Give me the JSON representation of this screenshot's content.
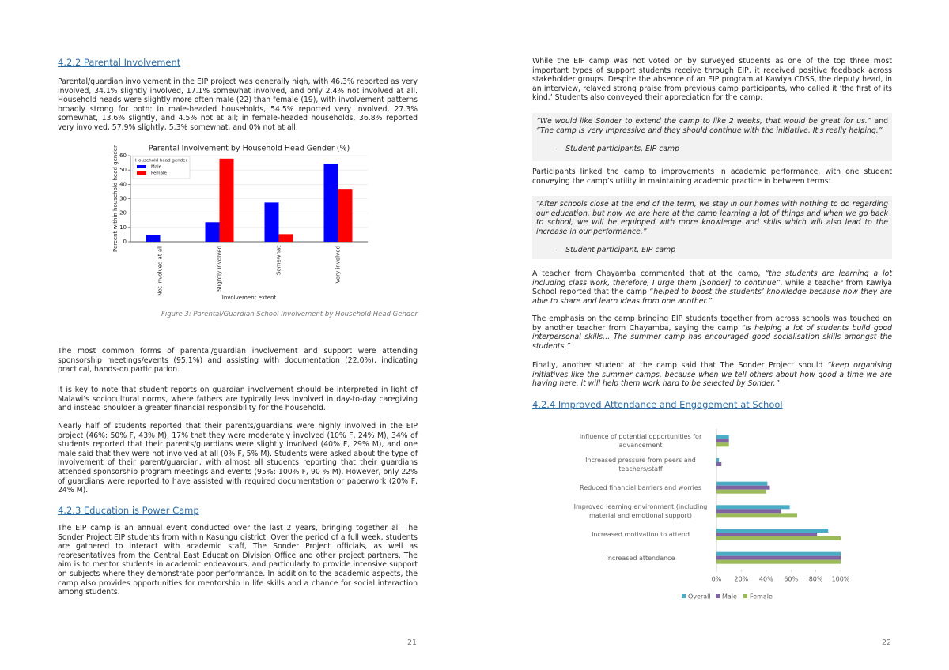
{
  "left_page": {
    "heading": "4.2.2 Parental Involvement",
    "intro": "Parental/guardian involvement in the EIP project was generally high, with 46.3% reported as very involved, 34.1% slightly involved, 17.1% somewhat involved, and only 2.4% not involved at all. Household heads were slightly more often male (22) than female (19), with involvement patterns broadly strong for both: in male-headed households, 54.5% reported very involved, 27.3% somewhat, 13.6% slightly, and 4.5% not at all; in female-headed households, 36.8% reported very involved, 57.9% slightly, 5.3% somewhat, and 0% not at all.",
    "figure_caption": "Figure 3: Parental/Guardian School Involvement by Household Head Gender",
    "paragraphs": [
      "The most common forms of parental/guardian involvement and support were attending sponsorship meetings/events (95.1%) and assisting with documentation (22.0%), indicating practical, hands-on participation.",
      "It is key to note that student reports on guardian involvement should be interpreted in light of Malawi’s sociocultural norms, where fathers are typically less involved in day-to-day caregiving and instead shoulder a greater financial responsibility for the household.",
      "Nearly half of students reported that their parents/guardians were highly involved in the EIP project (46%: 50% F, 43% M), 17% that they were moderately involved (10% F, 24% M), 34% of students reported that their parents/guardians were slightly involved (40% F, 29% M), and one male said that they were not involved at all (0% F, 5% M). Students were asked about the type of involvement of their parent/guardian, with almost all students reporting that their guardians attended sponsorship program meetings and events (95%: 100% F, 90 % M). However, only 22% of guardians were reported to have assisted with required documentation or paperwork (20% F, 24% M)."
    ],
    "heading_2": "4.2.3 Education is Power Camp",
    "camp_paragraph": "The EIP camp is an annual event conducted over the last 2 years, bringing together all The Sonder Project EIP students from within Kasungu district. Over the period of a full week, students are gathered to interact with academic staff, The Sonder Project officials, as well as representatives from the Central East Education Division Office and other project partners. The aim is to mentor students in academic endeavours, and particularly to provide intensive support on subjects where they demonstrate poor performance. In addition to the academic aspects, the camp also provides opportunities for mentorship in life skills and a chance for social interaction among students.",
    "page_number": "21"
  },
  "right_page": {
    "intro": "While the EIP camp was not voted on by surveyed students as one of the top three most important types of support students receive through EIP, it received positive feedback across stakeholder groups. Despite the absence of an EIP program at Kawiya CDSS, the deputy head, in an interview, relayed strong praise from previous camp participants, who called it ‘the first of its kind.’ Students also conveyed their appreciation for the camp:",
    "quote_1": {
      "parts": [
        "“We would like Sonder to extend the camp to like 2 weeks, that would be great for us.”",
        "and",
        "“The camp is very impressive and they should continue with the initiative. It's really helping.”"
      ],
      "attribution": "— Student participants, EIP camp"
    },
    "linking_paragraph": "Participants linked the camp to improvements in academic performance, with one student conveying the camp’s utility in maintaining academic practice in between terms:",
    "quote_2": {
      "text": "“After schools close at the end of the term, we stay in our homes with nothing to do regarding our education, but now we are here at the camp learning a lot of things and when we go back to school, we will be equipped with more knowledge and skills which will also lead to the increase in our performance.”",
      "attribution": "— Student participant, EIP camp"
    },
    "paragraphs": [
      [
        "A teacher from Chayamba commented that at the camp,",
        "“the students are learning a lot including class work, therefore, I urge them [Sonder] to continue”",
        ", while a teacher from Kawiya School reported that the camp “",
        "helped to boost the students’ knowledge because now they are able to share and learn ideas from one another.”"
      ],
      [
        "The emphasis on the camp bringing EIP students together from across schools was touched on by another teacher from Chayamba, saying the camp",
        "“is helping a lot of students build good interpersonal skills… The summer camp has encouraged good socialisation skills amongst the students.”"
      ],
      [
        "Finally, another student at the camp said that The Sonder Project should",
        "“keep organising initiatives like the summer camps, because when we tell others about how good a time we are having here, it will help them work hard to be selected by Sonder.”"
      ]
    ],
    "heading": "4.2.4 Improved Attendance and Engagement at School",
    "page_number": "22"
  },
  "chart_data": [
    {
      "type": "bar",
      "orientation": "vertical",
      "title": "Parental Involvement by Household Head Gender (%)",
      "x_label": "Involvement extent",
      "y_label": "Percent within household head gender",
      "categories": [
        "Not involved at all",
        "Slightly involved",
        "Somewhat",
        "Very involved"
      ],
      "legend_title": "Household head gender",
      "series": [
        {
          "name": "Male",
          "color": "#0000ff",
          "values": [
            4.5,
            13.6,
            27.3,
            54.5
          ]
        },
        {
          "name": "Female",
          "color": "#ff0000",
          "values": [
            0,
            57.9,
            5.3,
            36.8
          ]
        }
      ],
      "ylim": [
        0,
        60
      ],
      "yticks": [
        0,
        10,
        20,
        30,
        40,
        50,
        60
      ],
      "grid": true,
      "legend": "upper-left"
    },
    {
      "type": "bar",
      "orientation": "horizontal",
      "categories": [
        "Influence of potential opportunities for advancement",
        "Increased pressure from peers and teachers/staff",
        "Reduced financial barriers and worries",
        "Improved learning environment (including material and emotional support)",
        "Increased motivation to attend",
        "Increased attendance"
      ],
      "series": [
        {
          "name": "Overall",
          "color": "#4bacc6",
          "values": [
            10,
            2,
            41,
            59,
            90,
            100
          ]
        },
        {
          "name": "Male",
          "color": "#8064a2",
          "values": [
            10,
            4,
            43,
            52,
            81,
            100
          ]
        },
        {
          "name": "Female",
          "color": "#9bbb59",
          "values": [
            10,
            0,
            40,
            65,
            100,
            100
          ]
        }
      ],
      "xlim": [
        0,
        100
      ],
      "xticks": [
        {
          "value": 0,
          "label": "0%"
        },
        {
          "value": 20,
          "label": "20%"
        },
        {
          "value": 40,
          "label": "40%"
        },
        {
          "value": 60,
          "label": "60%"
        },
        {
          "value": 80,
          "label": "80%"
        },
        {
          "value": 100,
          "label": "100%"
        }
      ],
      "grid": false,
      "legend": "bottom"
    }
  ]
}
